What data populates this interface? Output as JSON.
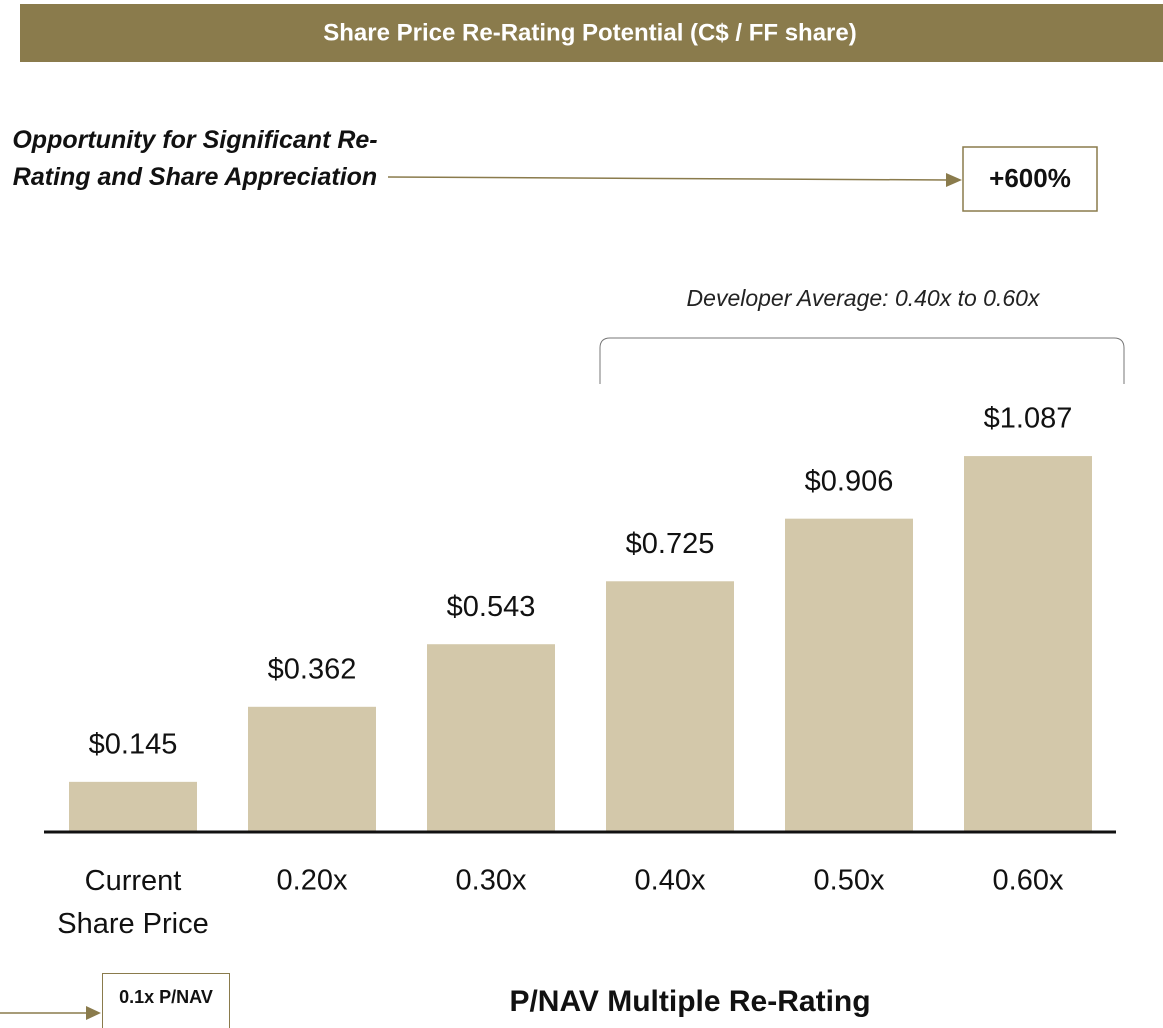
{
  "chart_data": {
    "type": "bar",
    "title": "Share Price Re-Rating Potential (C$ / FF share)",
    "annotation_left": "Opportunity for Significant Re-Rating and Share Appreciation",
    "annotation_box": "+600%",
    "bracket_label": "Developer Average: 0.40x to 0.60x",
    "bottom_box": "0.1x P/NAV",
    "x_label": "P/NAV Multiple Re-Rating",
    "categories": [
      "Current Share Price",
      "0.20x",
      "0.30x",
      "0.40x",
      "0.50x",
      "0.60x"
    ],
    "values": [
      0.145,
      0.362,
      0.543,
      0.725,
      0.906,
      1.087
    ],
    "value_labels": [
      "$0.145",
      "$0.362",
      "$0.543",
      "$0.725",
      "$0.906",
      "$1.087"
    ],
    "color": "#d3c8aa",
    "ylim": [
      0,
      1.2
    ]
  }
}
